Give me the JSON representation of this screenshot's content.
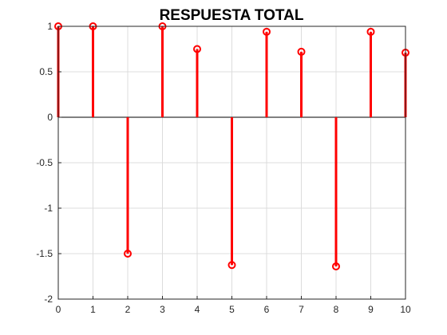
{
  "chart_data": {
    "type": "stem",
    "title": "RESPUESTA TOTAL",
    "xlabel": "",
    "ylabel": "",
    "xlim": [
      0,
      10
    ],
    "ylim": [
      -2,
      1
    ],
    "grid": true,
    "x": [
      0,
      1,
      2,
      3,
      4,
      5,
      6,
      7,
      8,
      9,
      10
    ],
    "values": [
      1.0,
      1.0,
      -1.5,
      1.0,
      0.75,
      -1.625,
      0.94,
      0.72,
      -1.64,
      0.94,
      0.71
    ],
    "xticks": [
      "0",
      "1",
      "2",
      "3",
      "4",
      "5",
      "6",
      "7",
      "8",
      "9",
      "10"
    ],
    "yticks": [
      "1",
      "0.5",
      "0",
      "-0.5",
      "-1",
      "-1.5",
      "-2"
    ],
    "ytick_values": [
      1,
      0.5,
      0,
      -0.5,
      -1,
      -1.5,
      -2
    ],
    "color": "#ff0000"
  }
}
